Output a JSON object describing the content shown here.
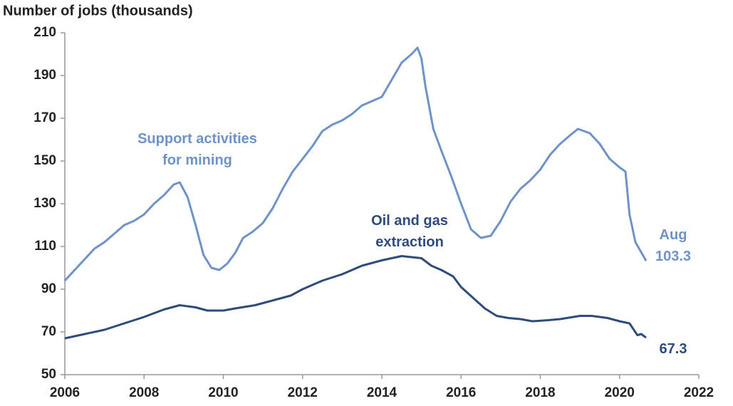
{
  "chart_data": {
    "type": "line",
    "y_axis_label": "Number of jobs (thousands)",
    "xlim": [
      2006,
      2022
    ],
    "xticks": [
      2006,
      2008,
      2010,
      2012,
      2014,
      2016,
      2018,
      2020,
      2022
    ],
    "ylim": [
      50,
      210
    ],
    "yticks": [
      50,
      70,
      90,
      110,
      130,
      150,
      170,
      190,
      210
    ],
    "grid": false,
    "annotations": [
      {
        "text": "Aug"
      }
    ],
    "series": [
      {
        "name": "Support activities for mining",
        "color": "#6f92c8",
        "x": [
          2006.0,
          2006.25,
          2006.5,
          2006.75,
          2007.0,
          2007.25,
          2007.5,
          2007.75,
          2008.0,
          2008.25,
          2008.5,
          2008.75,
          2008.9,
          2009.1,
          2009.3,
          2009.5,
          2009.7,
          2009.9,
          2010.1,
          2010.3,
          2010.5,
          2010.75,
          2011.0,
          2011.25,
          2011.5,
          2011.75,
          2012.0,
          2012.25,
          2012.5,
          2012.75,
          2013.0,
          2013.25,
          2013.5,
          2013.75,
          2014.0,
          2014.25,
          2014.5,
          2014.75,
          2014.9,
          2015.0,
          2015.1,
          2015.3,
          2015.5,
          2015.75,
          2016.0,
          2016.25,
          2016.5,
          2016.75,
          2017.0,
          2017.25,
          2017.5,
          2017.75,
          2018.0,
          2018.25,
          2018.5,
          2018.75,
          2018.95,
          2019.25,
          2019.5,
          2019.75,
          2020.0,
          2020.15,
          2020.25,
          2020.4,
          2020.67
        ],
        "values": [
          94,
          99,
          104,
          109,
          112,
          116,
          120,
          122,
          125,
          130,
          134,
          139,
          140,
          133,
          120,
          106,
          100,
          99,
          102,
          107,
          114,
          117,
          121,
          128,
          137,
          145,
          151,
          157,
          164,
          167,
          169,
          172,
          176,
          178,
          180,
          188,
          196,
          200,
          203,
          198,
          185,
          165,
          155,
          143,
          130,
          118,
          114,
          115,
          122,
          131,
          137,
          141,
          146,
          153,
          158,
          162,
          165,
          163,
          158,
          151,
          147,
          145,
          125,
          112,
          103.3
        ]
      },
      {
        "name": "Oil and gas extraction",
        "color": "#2f4b7c",
        "x": [
          2006.0,
          2006.5,
          2007.0,
          2007.5,
          2008.0,
          2008.5,
          2008.9,
          2009.3,
          2009.6,
          2010.0,
          2010.3,
          2010.8,
          2011.3,
          2011.7,
          2012.0,
          2012.5,
          2013.0,
          2013.5,
          2014.0,
          2014.5,
          2015.0,
          2015.25,
          2015.5,
          2015.8,
          2016.0,
          2016.3,
          2016.6,
          2016.9,
          2017.2,
          2017.5,
          2017.8,
          2018.2,
          2018.5,
          2019.0,
          2019.3,
          2019.7,
          2020.0,
          2020.25,
          2020.45,
          2020.55,
          2020.67
        ],
        "values": [
          67,
          69,
          71,
          74,
          77,
          80.5,
          82.5,
          81.5,
          80,
          80,
          81,
          82.5,
          85,
          87,
          90,
          94,
          97,
          101,
          103.5,
          105.5,
          104.5,
          101,
          99,
          96,
          91,
          86,
          81,
          77.5,
          76.5,
          76,
          75,
          75.5,
          76,
          77.5,
          77.5,
          76.5,
          75,
          74,
          68.5,
          69,
          67.3
        ]
      }
    ]
  }
}
